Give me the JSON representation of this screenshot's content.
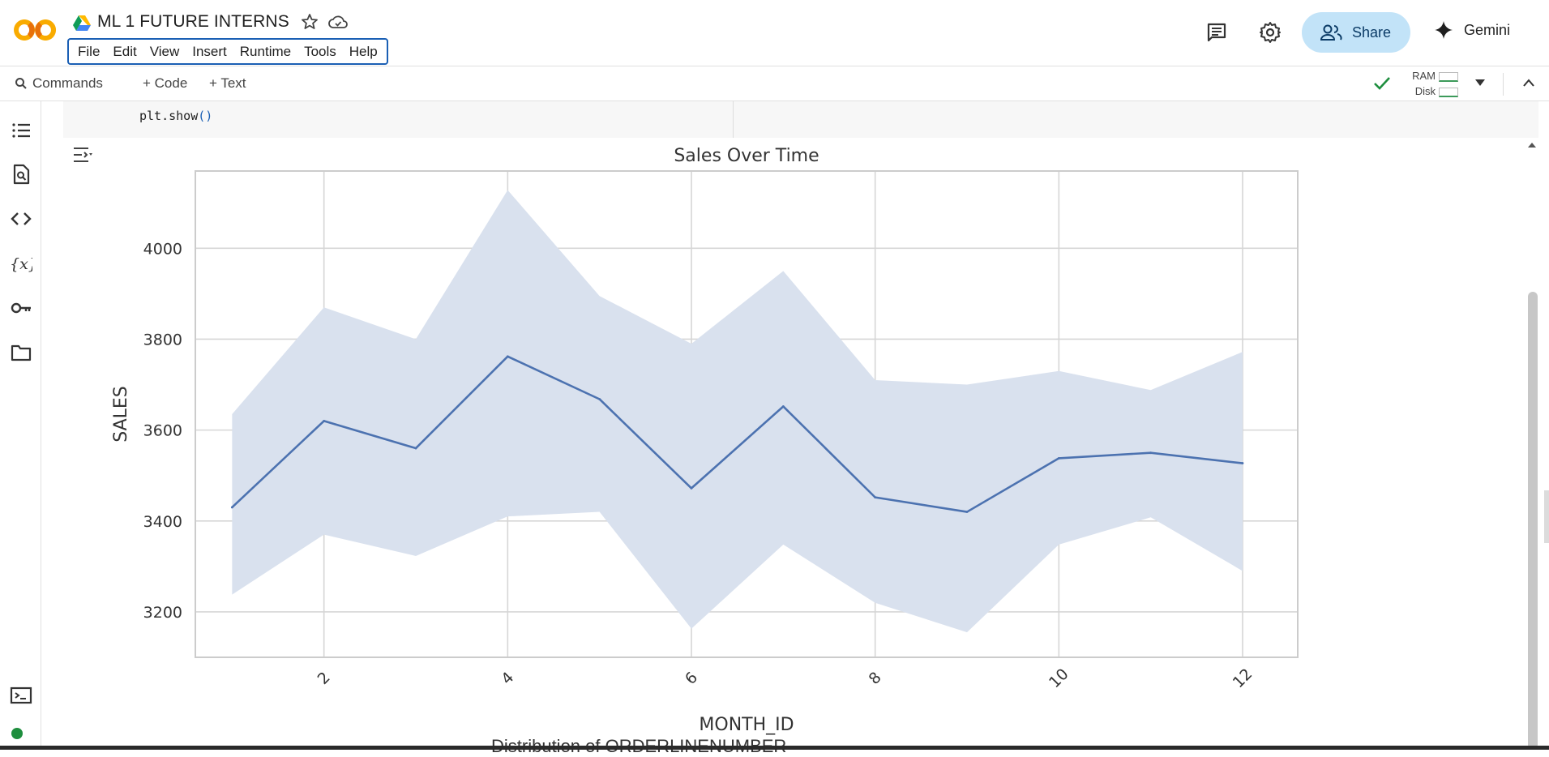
{
  "header": {
    "notebook_title": "ML 1  FUTURE INTERNS",
    "menu": [
      "File",
      "Edit",
      "View",
      "Insert",
      "Runtime",
      "Tools",
      "Help"
    ],
    "share_label": "Share",
    "gemini_label": "Gemini"
  },
  "toolbar": {
    "commands_label": "Commands",
    "code_label": "+ Code",
    "text_label": "+ Text",
    "ram_label": "RAM",
    "disk_label": "Disk"
  },
  "cell": {
    "code_line": "plt.show",
    "code_paren": "()"
  },
  "chart_data": {
    "type": "line",
    "title": "Sales Over Time",
    "xlabel": "MONTH_ID",
    "ylabel": "SALES",
    "x": [
      1,
      2,
      3,
      4,
      5,
      6,
      7,
      8,
      9,
      10,
      11,
      12
    ],
    "series": [
      {
        "values": [
          3430,
          3620,
          3560,
          3762,
          3668,
          3472,
          3652,
          3452,
          3420,
          3538,
          3550,
          3527
        ],
        "ci_upper": [
          3635,
          3870,
          3800,
          4128,
          3895,
          3790,
          3950,
          3710,
          3700,
          3730,
          3688,
          3772
        ],
        "ci_lower": [
          3238,
          3370,
          3323,
          3410,
          3420,
          3163,
          3348,
          3220,
          3155,
          3348,
          3408,
          3290
        ]
      }
    ],
    "xticks": [
      2,
      4,
      6,
      8,
      10,
      12
    ],
    "yticks": [
      3200,
      3400,
      3600,
      3800,
      4000
    ],
    "xlim": [
      0.6,
      12.6
    ],
    "ylim": [
      3100,
      4170
    ],
    "grid": true,
    "line_color": "#4c72b0",
    "band_color": "#d9e1ee"
  },
  "next_output_title": "Distribution of ORDERLINENUMBER"
}
